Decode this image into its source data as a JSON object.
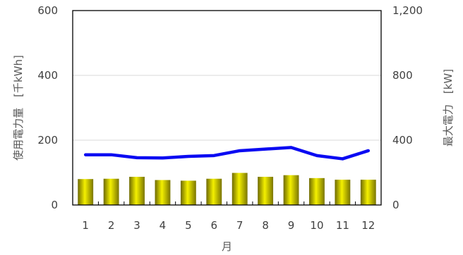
{
  "chart_data": {
    "type": "bar+line",
    "categories": [
      "1",
      "2",
      "3",
      "4",
      "5",
      "6",
      "7",
      "8",
      "9",
      "10",
      "11",
      "12"
    ],
    "xlabel": "月",
    "ylabel_left": "使用電力量　[千kWh]",
    "ylabel_right": "最大電力　[kW]",
    "ylim_left": [
      0,
      600
    ],
    "yticks_left": [
      "0",
      "200",
      "400",
      "600"
    ],
    "ylim_right": [
      0,
      1200
    ],
    "yticks_right": [
      "0",
      "400",
      "800",
      "1,200"
    ],
    "grid": true,
    "series": [
      {
        "kind": "bar",
        "axis": "left",
        "color": "#c8c000",
        "values": [
          80,
          81,
          87,
          77,
          75,
          81,
          99,
          87,
          92,
          83,
          78,
          78
        ]
      },
      {
        "kind": "line",
        "axis": "right",
        "color": "#0b0bf2",
        "values": [
          310,
          310,
          292,
          290,
          300,
          305,
          335,
          345,
          355,
          305,
          285,
          335
        ]
      }
    ]
  }
}
